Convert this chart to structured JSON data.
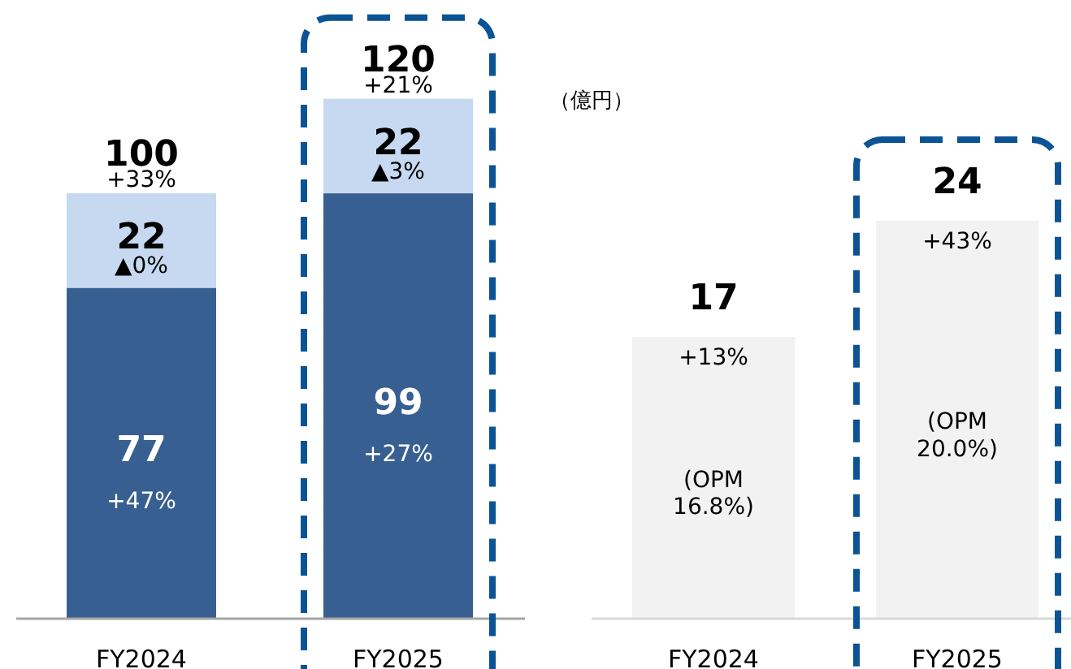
{
  "chart_data": [
    {
      "type": "bar",
      "stacked": true,
      "data_labels": true,
      "categories": [
        "FY2024",
        "FY2025"
      ],
      "series": [
        {
          "color": "#375f91",
          "values": [
            77,
            99
          ]
        },
        {
          "color": "#c6d9f1",
          "values": [
            22,
            22
          ]
        }
      ],
      "totals": [
        "100",
        "120"
      ],
      "annotations": [
        "+47%",
        "▲0%",
        "+33%",
        "+27%",
        "▲3%",
        "+21%"
      ]
    },
    {
      "type": "bar",
      "data_labels": true,
      "categories": [
        "FY2024",
        "FY2025"
      ],
      "series": [
        {
          "color": "#f2f2f2",
          "values": [
            17,
            24
          ]
        }
      ],
      "annotations": [
        "+13%",
        "(OPM\n16.8%)",
        "+43%",
        "(OPM\n20.0%)",
        "（億円）"
      ]
    }
  ]
}
